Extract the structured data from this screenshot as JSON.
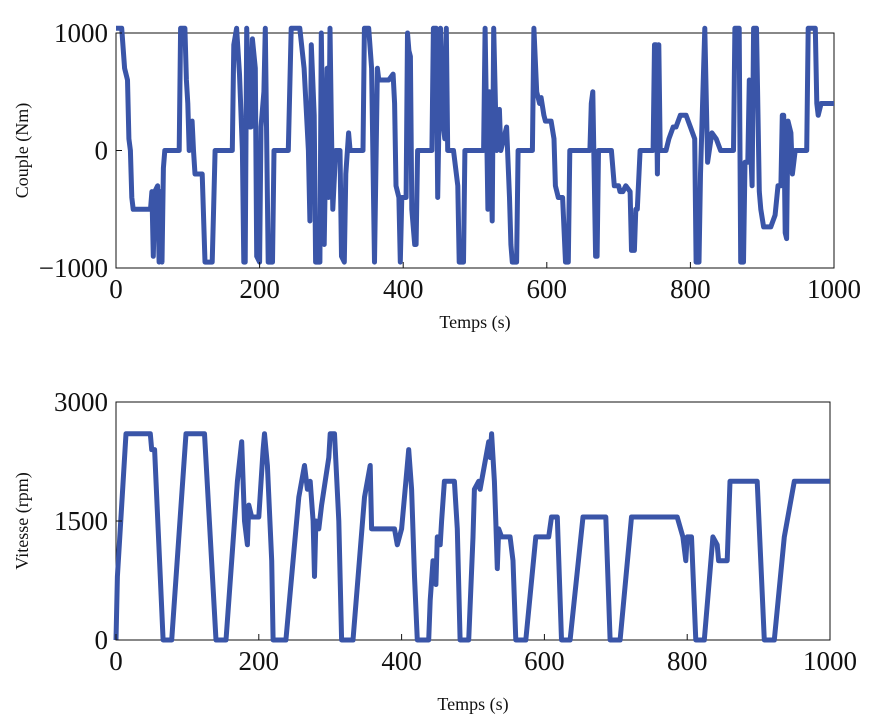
{
  "chart_data": [
    {
      "type": "line",
      "xlabel": "Temps (s)",
      "ylabel": "Couple (Nm)",
      "color": "#3a55a8",
      "xlim": [
        0,
        1000
      ],
      "ylim": [
        -1000,
        1000
      ],
      "xticks": [
        0,
        200,
        400,
        600,
        800,
        1000
      ],
      "yticks": [
        {
          "value": -1000,
          "label": "−1000"
        },
        0,
        1000
      ],
      "x": [
        0,
        8,
        12,
        16,
        18,
        20,
        22,
        24,
        48,
        50,
        52,
        54,
        58,
        60,
        62,
        64,
        66,
        68,
        88,
        90,
        96,
        98,
        100,
        102,
        104,
        106,
        108,
        110,
        120,
        124,
        134,
        136,
        138,
        162,
        164,
        168,
        172,
        176,
        178,
        180,
        182,
        186,
        188,
        190,
        194,
        196,
        200,
        202,
        206,
        208,
        212,
        218,
        220,
        240,
        244,
        256,
        262,
        268,
        270,
        272,
        276,
        278,
        284,
        286,
        290,
        294,
        296,
        298,
        300,
        302,
        306,
        312,
        314,
        318,
        320,
        324,
        326,
        344,
        346,
        352,
        356,
        360,
        364,
        366,
        380,
        386,
        388,
        390,
        394,
        396,
        398,
        404,
        406,
        408,
        410,
        412,
        416,
        418,
        420,
        440,
        442,
        446,
        448,
        452,
        456,
        458,
        460,
        462,
        470,
        476,
        478,
        484,
        486,
        512,
        514,
        518,
        520,
        524,
        526,
        530,
        532,
        534,
        536,
        544,
        548,
        550,
        552,
        558,
        560,
        580,
        582,
        586,
        590,
        592,
        596,
        598,
        606,
        610,
        612,
        616,
        622,
        626,
        630,
        632,
        660,
        662,
        664,
        668,
        670,
        672,
        690,
        694,
        700,
        702,
        706,
        710,
        716,
        718,
        722,
        724,
        726,
        730,
        748,
        750,
        752,
        754,
        756,
        758,
        766,
        770,
        776,
        780,
        786,
        794,
        800,
        806,
        808,
        812,
        814,
        820,
        824,
        830,
        836,
        842,
        860,
        862,
        868,
        870,
        874,
        876,
        880,
        882,
        884,
        886,
        888,
        892,
        896,
        898,
        902,
        912,
        918,
        922,
        926,
        928,
        930,
        932,
        934,
        936,
        940,
        942,
        944,
        946,
        962,
        964,
        974,
        976,
        978,
        982,
        1000
      ],
      "values": [
        1040,
        1040,
        700,
        600,
        100,
        0,
        -400,
        -500,
        -500,
        -350,
        -900,
        -350,
        -300,
        -950,
        -350,
        -950,
        -150,
        0,
        0,
        1040,
        1040,
        600,
        400,
        0,
        200,
        250,
        0,
        -200,
        -200,
        -950,
        -950,
        -500,
        0,
        0,
        900,
        1040,
        650,
        0,
        -950,
        -950,
        1040,
        200,
        200,
        950,
        700,
        -900,
        -950,
        200,
        500,
        1040,
        -950,
        -950,
        0,
        0,
        1040,
        1040,
        700,
        0,
        -600,
        900,
        300,
        -950,
        -950,
        1000,
        -800,
        700,
        -400,
        1040,
        200,
        -500,
        0,
        0,
        -900,
        -950,
        -200,
        150,
        0,
        0,
        1040,
        1040,
        700,
        -950,
        700,
        600,
        600,
        650,
        400,
        -300,
        -400,
        -950,
        -400,
        -400,
        1000,
        850,
        800,
        -500,
        -800,
        -800,
        0,
        0,
        1040,
        1040,
        -400,
        1040,
        200,
        100,
        1040,
        0,
        0,
        -300,
        -950,
        -950,
        0,
        0,
        1040,
        -500,
        500,
        -600,
        1040,
        0,
        300,
        350,
        0,
        200,
        -400,
        -800,
        -950,
        -950,
        0,
        0,
        1040,
        500,
        400,
        450,
        300,
        250,
        250,
        100,
        -300,
        -400,
        -400,
        -950,
        -950,
        0,
        0,
        400,
        500,
        -900,
        -900,
        0,
        0,
        -300,
        -300,
        -350,
        -350,
        -300,
        -350,
        -850,
        -850,
        -500,
        -500,
        0,
        0,
        900,
        900,
        -200,
        900,
        0,
        0,
        100,
        200,
        200,
        300,
        300,
        200,
        100,
        -950,
        -950,
        -200,
        1040,
        -100,
        150,
        100,
        0,
        0,
        1040,
        1040,
        -950,
        -950,
        -100,
        -100,
        600,
        0,
        -300,
        1040,
        1040,
        -350,
        -500,
        -650,
        -650,
        -550,
        -300,
        -300,
        300,
        300,
        -700,
        -750,
        250,
        150,
        -200,
        -100,
        0,
        0,
        1040,
        1040,
        400,
        300,
        400,
        400
      ]
    },
    {
      "type": "line",
      "xlabel": "Temps (s)",
      "ylabel": "Vitesse (rpm)",
      "color": "#3a55a8",
      "xlim": [
        0,
        1000
      ],
      "ylim": [
        0,
        3000
      ],
      "xticks": [
        0,
        200,
        400,
        600,
        800,
        1000
      ],
      "yticks": [
        0,
        1500,
        3000
      ],
      "x": [
        0,
        2,
        14,
        48,
        50,
        54,
        66,
        78,
        98,
        124,
        140,
        154,
        170,
        176,
        180,
        184,
        186,
        190,
        200,
        206,
        208,
        212,
        218,
        220,
        238,
        256,
        264,
        268,
        272,
        276,
        278,
        280,
        284,
        288,
        298,
        300,
        306,
        312,
        316,
        332,
        348,
        356,
        358,
        390,
        394,
        400,
        408,
        410,
        414,
        418,
        422,
        438,
        440,
        444,
        448,
        450,
        454,
        456,
        460,
        474,
        478,
        482,
        494,
        500,
        502,
        508,
        510,
        516,
        522,
        524,
        526,
        530,
        532,
        534,
        536,
        540,
        552,
        556,
        560,
        574,
        588,
        606,
        610,
        618,
        624,
        636,
        654,
        686,
        692,
        706,
        722,
        786,
        794,
        798,
        800,
        806,
        812,
        824,
        836,
        842,
        844,
        856,
        860,
        898,
        908,
        922,
        936,
        950,
        1000
      ],
      "values": [
        0,
        800,
        2600,
        2600,
        2400,
        2400,
        0,
        0,
        2600,
        2600,
        0,
        0,
        2000,
        2500,
        1500,
        1200,
        1700,
        1550,
        1550,
        2400,
        2600,
        2200,
        1000,
        0,
        0,
        1800,
        2200,
        1900,
        2000,
        1500,
        800,
        1500,
        1400,
        1700,
        2300,
        2600,
        2600,
        1500,
        0,
        0,
        1800,
        2200,
        1400,
        1400,
        1200,
        1400,
        2200,
        2400,
        1900,
        800,
        0,
        0,
        500,
        1000,
        700,
        1300,
        1200,
        1500,
        2000,
        2000,
        1400,
        0,
        0,
        1300,
        1900,
        2000,
        1900,
        2200,
        2500,
        2300,
        2600,
        2000,
        1500,
        900,
        1400,
        1300,
        1300,
        1000,
        0,
        0,
        1300,
        1300,
        1550,
        1550,
        0,
        0,
        1550,
        1550,
        0,
        0,
        1550,
        1550,
        1300,
        1000,
        1300,
        1300,
        0,
        0,
        1300,
        1200,
        1000,
        1000,
        2000,
        2000,
        0,
        0,
        1300,
        2000,
        2000
      ]
    }
  ]
}
